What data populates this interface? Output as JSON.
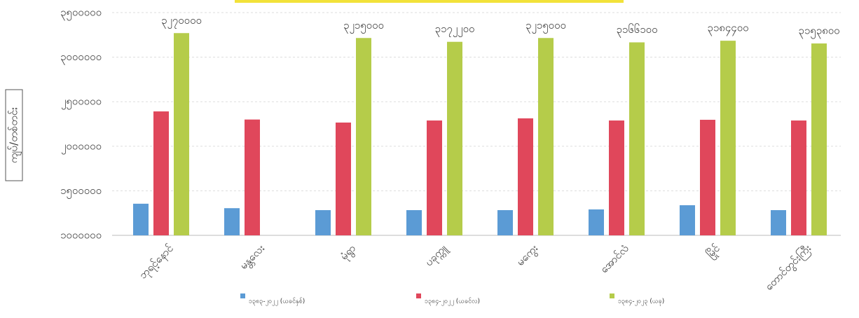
{
  "chart_data": {
    "type": "bar",
    "y_label": "ကျပ်/တစ်တင်း",
    "categories": [
      "ဘုရင့်နောင်",
      "မန္တလေး",
      "မုံရွာ",
      "ပခုက္ကူ",
      "မကွေး",
      "အောင်လံ",
      "မြိုင်",
      "တောင်တွင်းကြီး"
    ],
    "series": [
      {
        "name": "၁၃၈၃-၂၀၂၂ (ယခင်နှစ်)",
        "color": "#5b9bd5",
        "values": [
          1355000,
          1305000,
          1283000,
          1283000,
          1283000,
          1291000,
          1338000,
          1283000
        ]
      },
      {
        "name": "၁၃၈၄-၂၀၂၂ (ယခင်လ)",
        "color": "#e0475b",
        "values": [
          2391000,
          2300000,
          2266000,
          2289000,
          2313000,
          2289000,
          2297000,
          2289000
        ]
      },
      {
        "name": "၁၃၈၄-၂၀၂၃ (ယခု)",
        "color": "#b5cc4a",
        "values": [
          3270000,
          null,
          3215000,
          3172200,
          3215000,
          3166100,
          3184400,
          3153800
        ],
        "value_labels": [
          "၃၂၇၀၀၀၀",
          null,
          "၃၂၁၅၀၀၀",
          "၃၁၇၂၂၀၀",
          "၃၂၁၅၀၀၀",
          "၃၁၆၆၁၀၀",
          "၃၁၈၄၄၀၀",
          "၃၁၅၃၈၀၀"
        ]
      }
    ],
    "ylim": [
      1000000,
      3500000
    ],
    "yticks": [
      {
        "value": 1000000,
        "label": "၁၀၀၀၀၀၀"
      },
      {
        "value": 1500000,
        "label": "၁၅၀၀၀၀၀"
      },
      {
        "value": 2000000,
        "label": "၂၀၀၀၀၀၀"
      },
      {
        "value": 2500000,
        "label": "၂၅၀၀၀၀၀"
      },
      {
        "value": 3000000,
        "label": "၃၀၀၀၀၀၀"
      },
      {
        "value": 3500000,
        "label": "၃၅၀၀၀၀၀"
      }
    ],
    "grid": true
  }
}
